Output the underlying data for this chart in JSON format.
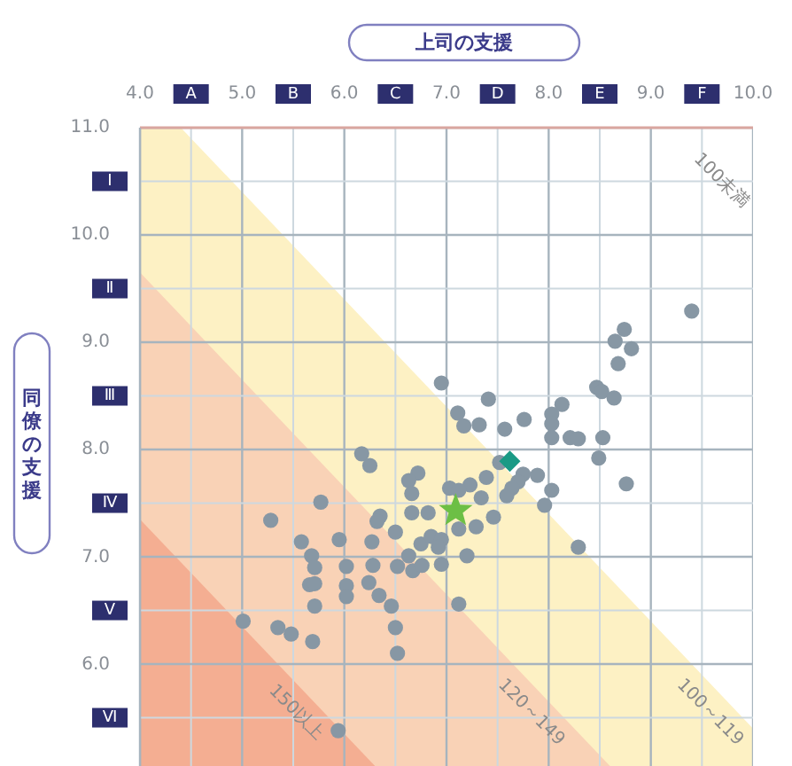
{
  "chart_data": {
    "type": "scatter",
    "xlabel": "上司の支援",
    "ylabel": "同僚の支援",
    "xlim": [
      4,
      10
    ],
    "ylim": [
      5.05,
      11
    ],
    "xticks": [
      {
        "value": 4,
        "label": "4.0"
      },
      {
        "value": 4.5,
        "label": "A"
      },
      {
        "value": 5,
        "label": "5.0"
      },
      {
        "value": 5.5,
        "label": "B"
      },
      {
        "value": 6,
        "label": "6.0"
      },
      {
        "value": 6.5,
        "label": "C"
      },
      {
        "value": 7,
        "label": "7.0"
      },
      {
        "value": 7.5,
        "label": "D"
      },
      {
        "value": 8,
        "label": "8.0"
      },
      {
        "value": 8.5,
        "label": "E"
      },
      {
        "value": 9,
        "label": "9.0"
      },
      {
        "value": 9.5,
        "label": "F"
      },
      {
        "value": 10,
        "label": "10.0"
      }
    ],
    "yticks": [
      {
        "value": 5.5,
        "label": "Ⅵ"
      },
      {
        "value": 6,
        "label": "6.0"
      },
      {
        "value": 6.5,
        "label": "Ⅴ"
      },
      {
        "value": 7,
        "label": "7.0"
      },
      {
        "value": 7.5,
        "label": "Ⅳ"
      },
      {
        "value": 8,
        "label": "8.0"
      },
      {
        "value": 8.5,
        "label": "Ⅲ"
      },
      {
        "value": 9,
        "label": "9.0"
      },
      {
        "value": 9.5,
        "label": "Ⅱ"
      },
      {
        "value": 10,
        "label": "10.0"
      },
      {
        "value": 10.5,
        "label": "Ⅰ"
      },
      {
        "value": 11,
        "label": "11.0"
      }
    ],
    "grid": true,
    "annotations": [
      "100未満"
    ],
    "series": [
      {
        "type": "area",
        "name": "100～119",
        "color": "#fdf1c4",
        "x": [
          4,
          4.4,
          10
        ],
        "values": [
          11,
          11,
          5.4
        ]
      },
      {
        "type": "area",
        "name": "120～149",
        "color": "#f9d2b6",
        "x": [
          4,
          8.6
        ],
        "values": [
          9.65,
          5.05
        ]
      },
      {
        "type": "area",
        "name": "150以上",
        "color": "#f4ae92",
        "x": [
          4,
          6.3
        ],
        "values": [
          7.35,
          5.05
        ]
      },
      {
        "color": "#8797a4",
        "marker": "circle",
        "x": [
          9.4,
          8.74,
          8.65,
          8.81,
          8.68,
          6.95,
          7.41,
          8.47,
          8.52,
          8.64,
          8.13,
          7.11,
          8.03,
          7.76,
          7.17,
          7.32,
          8.03,
          7.57,
          8.03,
          8.21,
          8.29,
          8.53,
          6.17,
          8.49,
          6.25,
          7.52,
          6.72,
          6.63,
          7.39,
          7.75,
          7.89,
          7.7,
          7.64,
          7.59,
          8.03,
          8.76,
          7.03,
          7.23,
          7.12,
          6.66,
          7.34,
          7.96,
          5.77,
          5.28,
          6.35,
          6.32,
          6.66,
          6.82,
          7.46,
          7.29,
          7.12,
          6.5,
          6.75,
          6.85,
          6.95,
          6.92,
          8.29,
          5.58,
          5.95,
          6.27,
          5.68,
          5.71,
          6.02,
          6.28,
          6.52,
          6.63,
          6.67,
          6.76,
          6.95,
          7.2,
          5.66,
          5.71,
          6.02,
          6.24,
          6.02,
          6.34,
          5.71,
          6.46,
          7.12,
          5.01,
          5.35,
          5.48,
          5.69,
          6.5,
          6.52,
          5.94
        ],
        "values": [
          9.29,
          9.12,
          9.01,
          8.94,
          8.8,
          8.62,
          8.47,
          8.58,
          8.54,
          8.48,
          8.42,
          8.34,
          8.33,
          8.28,
          8.22,
          8.23,
          8.24,
          8.19,
          8.11,
          8.11,
          8.1,
          8.11,
          7.96,
          7.92,
          7.85,
          7.88,
          7.78,
          7.71,
          7.74,
          7.77,
          7.76,
          7.7,
          7.64,
          7.57,
          7.62,
          7.68,
          7.64,
          7.67,
          7.62,
          7.59,
          7.55,
          7.48,
          7.51,
          7.34,
          7.38,
          7.33,
          7.41,
          7.41,
          7.37,
          7.28,
          7.26,
          7.23,
          7.12,
          7.19,
          7.16,
          7.09,
          7.09,
          7.14,
          7.16,
          7.14,
          7.01,
          6.9,
          6.91,
          6.92,
          6.91,
          7.01,
          6.87,
          6.92,
          6.93,
          7.01,
          6.74,
          6.75,
          6.73,
          6.76,
          6.63,
          6.64,
          6.54,
          6.54,
          6.56,
          6.4,
          6.34,
          6.28,
          6.21,
          6.34,
          6.1,
          5.38
        ]
      },
      {
        "color": "#1a9a85",
        "marker": "diamond",
        "x": [
          7.62
        ],
        "values": [
          7.89
        ]
      },
      {
        "color": "#6cbf45",
        "marker": "star",
        "x": [
          7.09
        ],
        "values": [
          7.43
        ]
      }
    ]
  }
}
